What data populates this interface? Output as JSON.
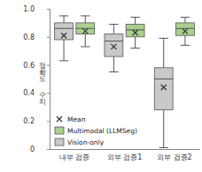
{
  "chart_data": {
    "type": "box",
    "y_label": "정확도 수치",
    "categories": [
      "내부 검증",
      "외부 검증1",
      "외부 검증2"
    ],
    "series": [
      {
        "name": "Vision-only",
        "color": "#c9c9c9",
        "min": [
          0.63,
          0.55,
          0.01
        ],
        "q1": [
          0.78,
          0.66,
          0.28
        ],
        "median": [
          0.86,
          0.77,
          0.5
        ],
        "q3": [
          0.9,
          0.82,
          0.58
        ],
        "max": [
          0.95,
          0.89,
          0.79
        ],
        "mean": [
          0.81,
          0.73,
          0.44
        ]
      },
      {
        "name": "Multimodal (LLMSeg)",
        "color": "#a9d18e",
        "min": [
          0.73,
          0.72,
          0.74
        ],
        "q1": [
          0.82,
          0.8,
          0.81
        ],
        "median": [
          0.86,
          0.85,
          0.86
        ],
        "q3": [
          0.9,
          0.89,
          0.9
        ],
        "max": [
          0.95,
          0.94,
          0.94
        ],
        "mean": [
          0.84,
          0.83,
          0.84
        ]
      }
    ],
    "mean_label": "Mean",
    "ylim": [
      0,
      1
    ],
    "yticks": [
      0,
      0.2,
      0.4,
      0.6,
      0.8,
      {
        "value": 1,
        "label": "1.0"
      }
    ],
    "legend": "lower left",
    "grid": false
  }
}
